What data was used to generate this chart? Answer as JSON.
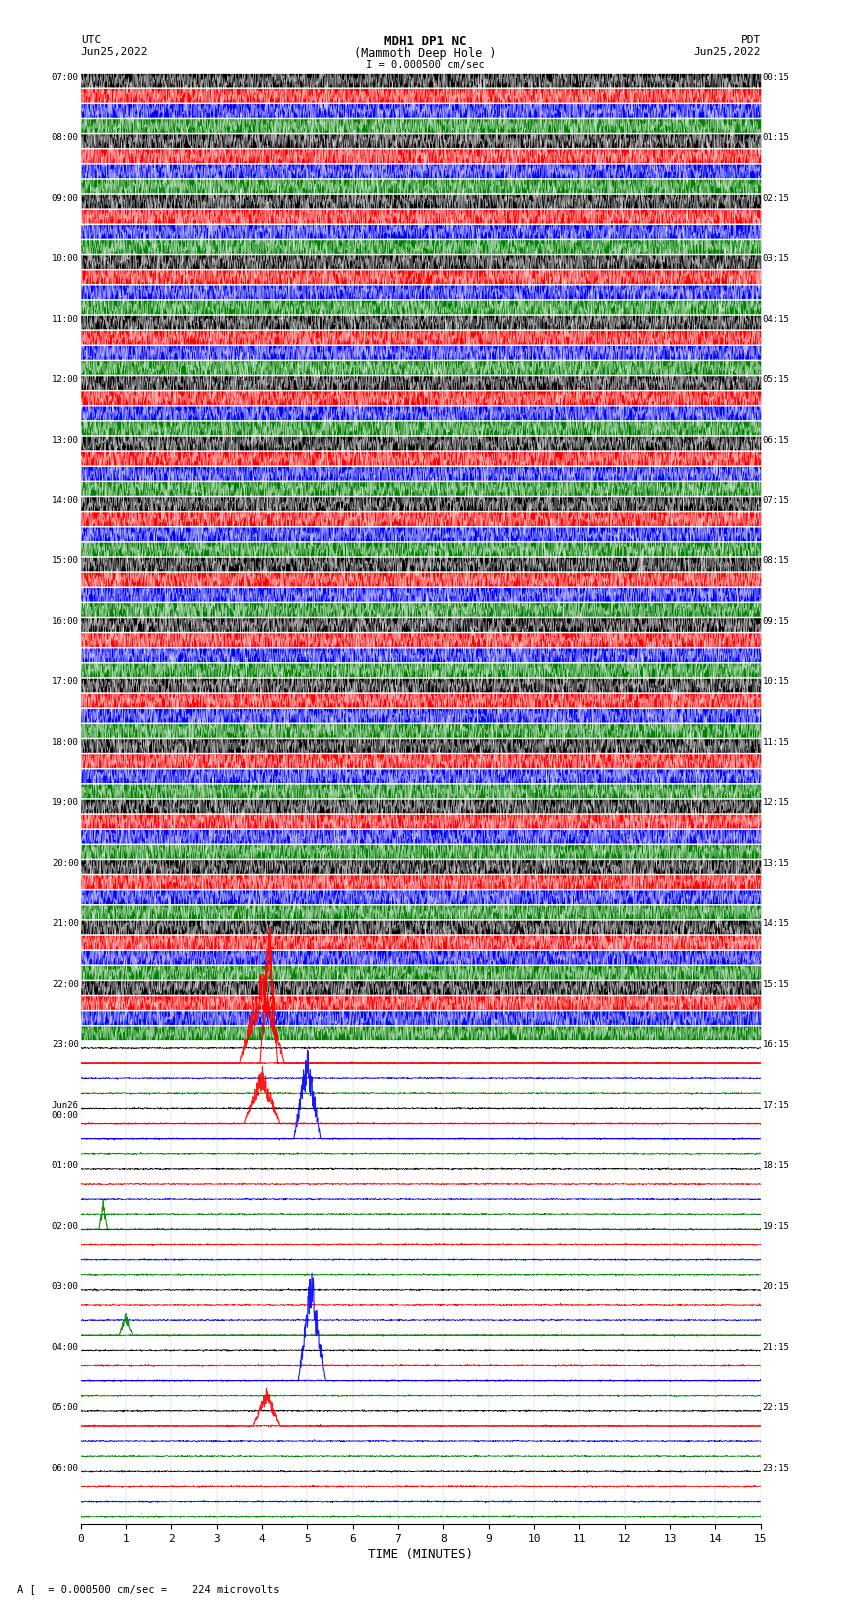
{
  "title_line1": "MDH1 DP1 NC",
  "title_line2": "(Mammoth Deep Hole )",
  "title_line3": "I = 0.000500 cm/sec",
  "left_header_line1": "UTC",
  "left_header_line2": "Jun25,2022",
  "right_header_line1": "PDT",
  "right_header_line2": "Jun25,2022",
  "bottom_xlabel": "TIME (MINUTES)",
  "bottom_note": "A [  = 0.000500 cm/sec =    224 microvolts",
  "utc_times": [
    "07:00",
    "08:00",
    "09:00",
    "10:00",
    "11:00",
    "12:00",
    "13:00",
    "14:00",
    "15:00",
    "16:00",
    "17:00",
    "18:00",
    "19:00",
    "20:00",
    "21:00",
    "22:00",
    "23:00",
    "Jun26\n00:00",
    "01:00",
    "02:00",
    "03:00",
    "04:00",
    "05:00",
    "06:00"
  ],
  "pdt_times": [
    "00:15",
    "01:15",
    "02:15",
    "03:15",
    "04:15",
    "05:15",
    "06:15",
    "07:15",
    "08:15",
    "09:15",
    "10:15",
    "11:15",
    "12:15",
    "13:15",
    "14:15",
    "15:15",
    "16:15",
    "17:15",
    "18:15",
    "19:15",
    "20:15",
    "21:15",
    "22:15",
    "23:15"
  ],
  "colors": [
    "black",
    "red",
    "blue",
    "green"
  ],
  "n_rows": 24,
  "n_traces_per_row": 4,
  "dense_rows": 16,
  "sparse_rows": 8,
  "x_min": 0,
  "x_max": 15,
  "x_ticks": [
    0,
    1,
    2,
    3,
    4,
    5,
    6,
    7,
    8,
    9,
    10,
    11,
    12,
    13,
    14,
    15
  ],
  "figsize": [
    8.5,
    16.13
  ],
  "dpi": 100,
  "dense_amp": 0.45,
  "sparse_amp": 0.08,
  "n_points": 2000
}
